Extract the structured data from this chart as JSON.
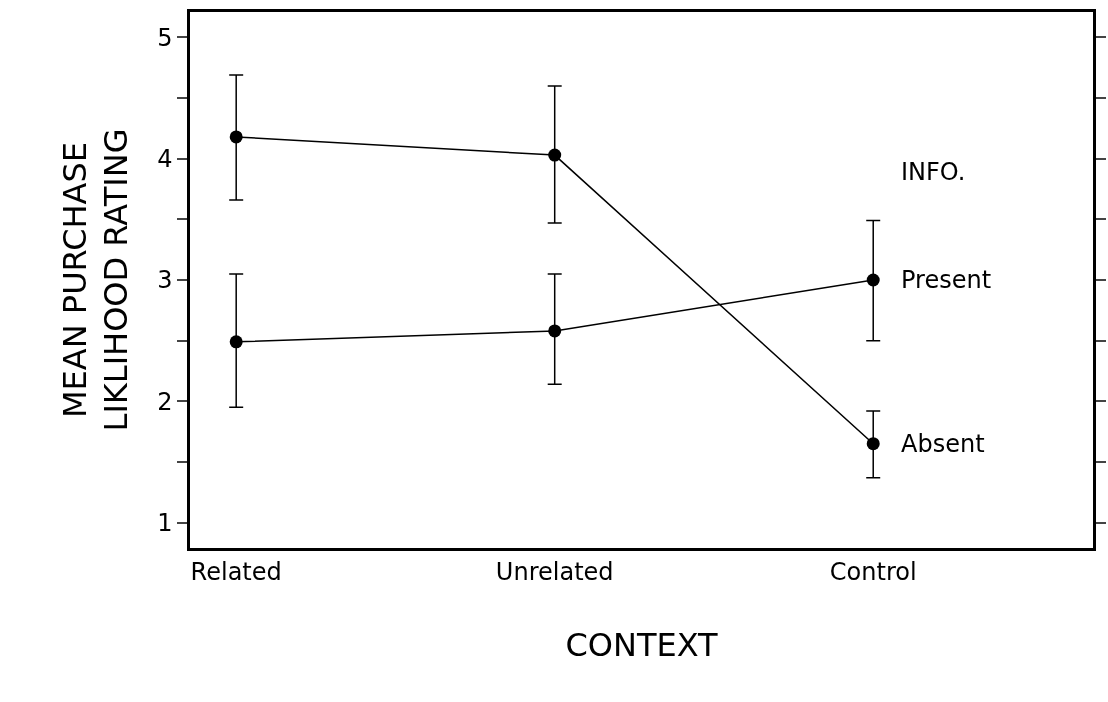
{
  "chart_data": {
    "type": "line",
    "xlabel": "CONTEXT",
    "ylabel": "MEAN PURCHASE\nLIKLIHOOD RATING",
    "legend_title": "INFO.",
    "categories": [
      "Related",
      "Unrelated",
      "Control"
    ],
    "series": [
      {
        "name": "Present",
        "color": "#000000",
        "values": [
          2.49,
          2.58,
          3.0
        ],
        "errors": [
          [
            1.95,
            3.05
          ],
          [
            2.14,
            3.05
          ],
          [
            2.5,
            3.49
          ]
        ]
      },
      {
        "name": "Absent",
        "color": "#000000",
        "values": [
          4.18,
          4.03,
          1.65
        ],
        "errors": [
          [
            3.66,
            4.69
          ],
          [
            3.47,
            4.6
          ],
          [
            1.37,
            1.92
          ]
        ]
      }
    ],
    "ylim": [
      0.79,
      5.21
    ],
    "yticks": [
      1,
      {
        "value": 1.5,
        "label": null
      },
      2,
      {
        "value": 2.5,
        "label": null
      },
      3,
      {
        "value": 3.5,
        "label": null
      },
      4,
      {
        "value": 4.5,
        "label": null
      },
      5
    ],
    "legend": false,
    "marker": "circle",
    "line_style": "solid"
  }
}
